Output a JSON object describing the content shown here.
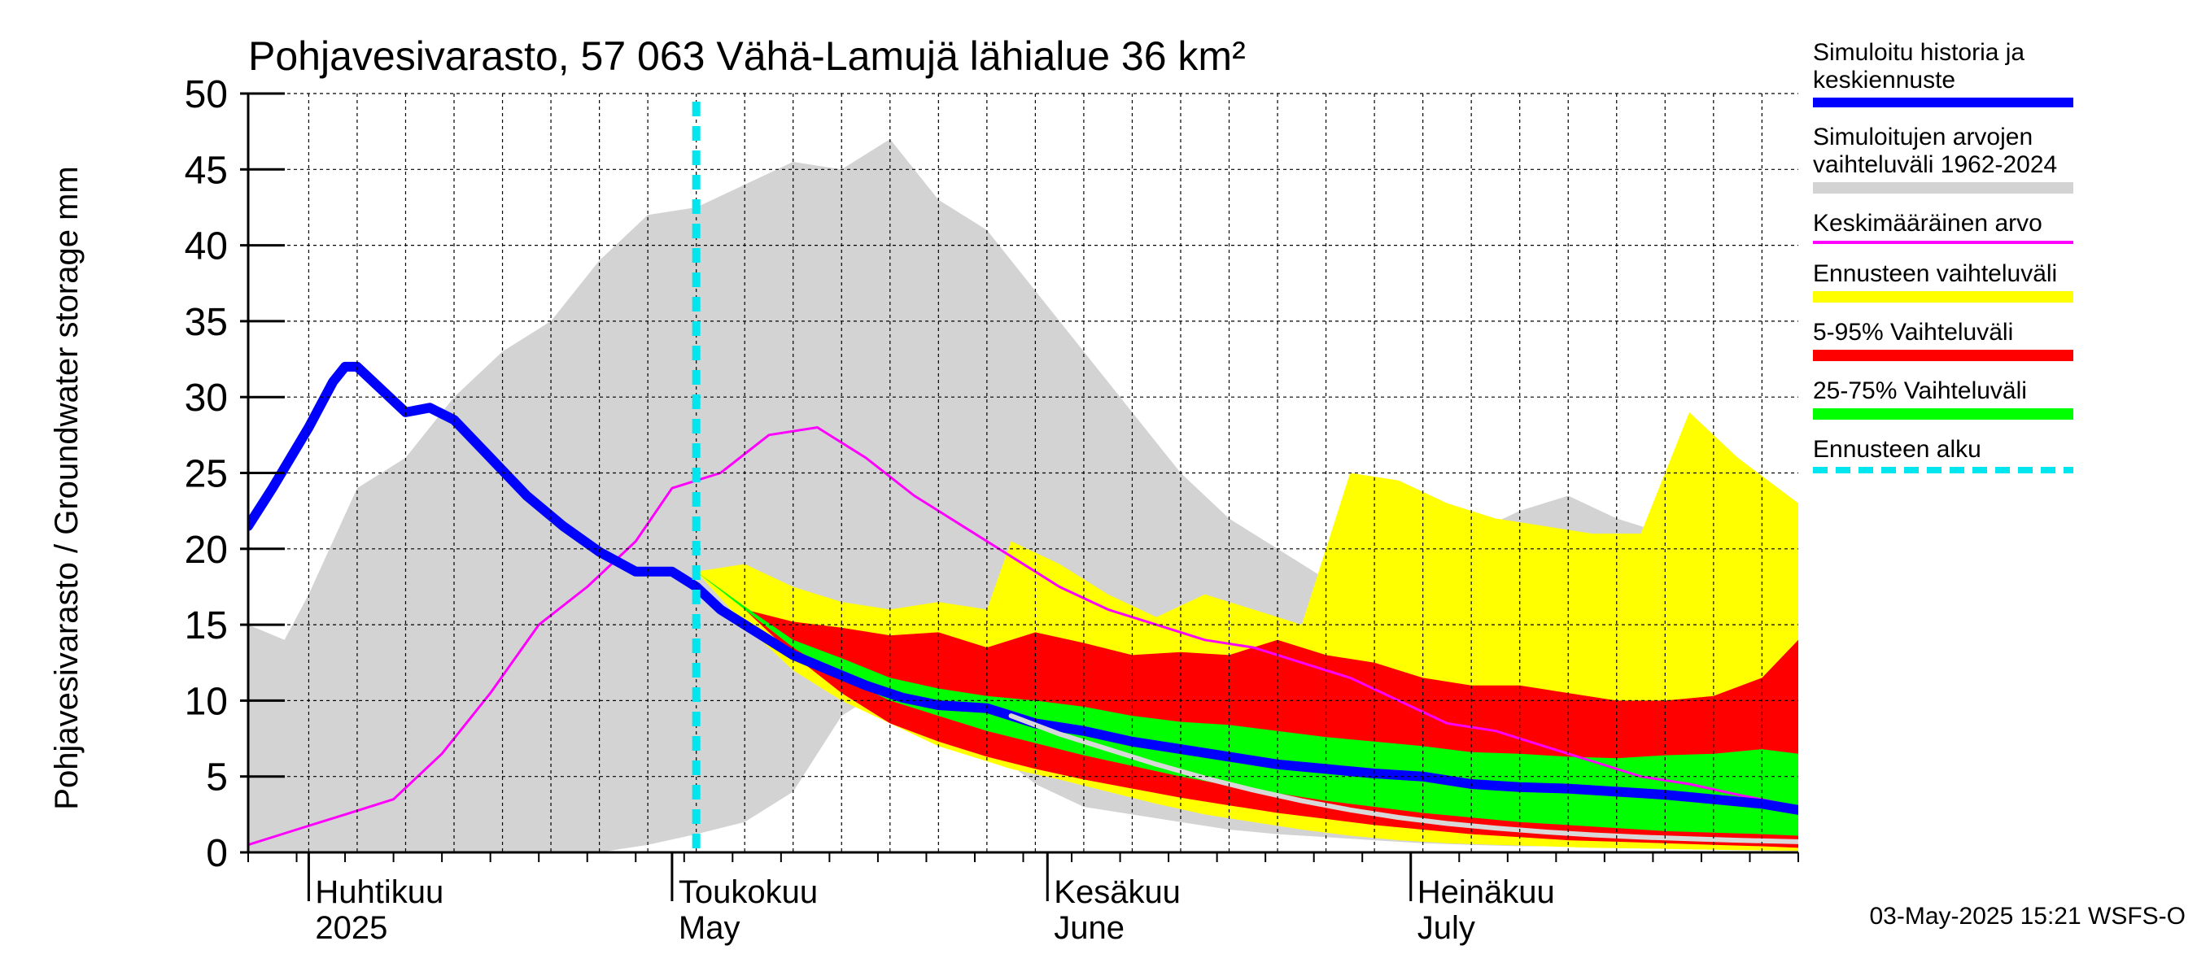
{
  "chart_data": {
    "type": "area",
    "title": "Pohjavesivarasto, 57 063 Vähä-Lamujä lähialue 36 km²",
    "ylabel": "Pohjavesivarasto / Groundwater storage   mm",
    "ylim": [
      0,
      50
    ],
    "yticks": [
      0,
      5,
      10,
      15,
      20,
      25,
      30,
      35,
      40,
      45,
      50
    ],
    "xlim": [
      "2025-03-27",
      "2025-08-02"
    ],
    "month_labels": [
      {
        "date": "2025-04-01",
        "fi": "Huhtikuu",
        "en": "2025"
      },
      {
        "date": "2025-05-01",
        "fi": "Toukokuu",
        "en": "May"
      },
      {
        "date": "2025-06-01",
        "fi": "Kesäkuu",
        "en": "June"
      },
      {
        "date": "2025-07-01",
        "fi": "Heinäkuu",
        "en": "July"
      }
    ],
    "forecast_start": "2025-05-03",
    "series": [
      {
        "name": "Simuloitujen arvojen vaihteluväli 1962-2024",
        "kind": "band",
        "color": "#d3d3d3",
        "x": [
          "2025-03-27",
          "2025-03-30",
          "2025-04-01",
          "2025-04-05",
          "2025-04-09",
          "2025-04-13",
          "2025-04-17",
          "2025-04-21",
          "2025-04-25",
          "2025-04-29",
          "2025-05-03",
          "2025-05-07",
          "2025-05-11",
          "2025-05-15",
          "2025-05-19",
          "2025-05-23",
          "2025-05-27",
          "2025-05-31",
          "2025-06-04",
          "2025-06-08",
          "2025-06-12",
          "2025-06-16",
          "2025-06-20",
          "2025-06-24",
          "2025-06-28",
          "2025-07-02",
          "2025-07-06",
          "2025-07-10",
          "2025-07-14",
          "2025-07-18",
          "2025-07-22",
          "2025-07-26",
          "2025-07-30",
          "2025-08-02"
        ],
        "low": [
          0,
          0,
          0,
          0,
          0,
          0,
          0,
          0,
          0,
          0.5,
          1.2,
          2,
          4,
          9,
          11,
          9,
          7,
          4.5,
          3,
          2.5,
          2,
          1.5,
          1.2,
          1,
          0.8,
          0.6,
          0.5,
          0.4,
          0.4,
          0.3,
          0.3,
          0.3,
          0.2,
          0.2
        ],
        "high": [
          15,
          14,
          17,
          24,
          26,
          30,
          33,
          35,
          39,
          42,
          42.5,
          44,
          45.5,
          45,
          47,
          43,
          41,
          37,
          33,
          29,
          25,
          22,
          20,
          18,
          17.5,
          19,
          21,
          22.5,
          23.5,
          22,
          21,
          20,
          19.5,
          19.5
        ]
      },
      {
        "name": "Ennusteen vaihteluväli",
        "kind": "band",
        "color": "#ffff00",
        "x": [
          "2025-05-03",
          "2025-05-07",
          "2025-05-11",
          "2025-05-15",
          "2025-05-19",
          "2025-05-23",
          "2025-05-27",
          "2025-05-29",
          "2025-06-02",
          "2025-06-06",
          "2025-06-10",
          "2025-06-14",
          "2025-06-18",
          "2025-06-22",
          "2025-06-26",
          "2025-06-30",
          "2025-07-04",
          "2025-07-08",
          "2025-07-12",
          "2025-07-16",
          "2025-07-20",
          "2025-07-24",
          "2025-07-28",
          "2025-08-02"
        ],
        "low": [
          18.5,
          15,
          12,
          10,
          8.5,
          7,
          6,
          5.5,
          4.8,
          4,
          3.2,
          2.5,
          2,
          1.5,
          1.1,
          0.8,
          0.6,
          0.5,
          0.4,
          0.3,
          0.25,
          0.2,
          0.15,
          0.1
        ],
        "high": [
          18.5,
          19,
          17.5,
          16.5,
          16,
          16.5,
          16,
          20.5,
          19,
          17,
          15.5,
          17,
          16,
          15,
          25,
          24.5,
          23,
          22,
          21.5,
          21,
          21,
          29,
          26,
          23
        ]
      },
      {
        "name": "5-95% Vaihteluväli",
        "kind": "band",
        "color": "#ff0000",
        "x": [
          "2025-05-03",
          "2025-05-07",
          "2025-05-11",
          "2025-05-15",
          "2025-05-19",
          "2025-05-23",
          "2025-05-27",
          "2025-05-31",
          "2025-06-04",
          "2025-06-08",
          "2025-06-12",
          "2025-06-16",
          "2025-06-20",
          "2025-06-24",
          "2025-06-28",
          "2025-07-02",
          "2025-07-06",
          "2025-07-10",
          "2025-07-14",
          "2025-07-18",
          "2025-07-22",
          "2025-07-26",
          "2025-07-30",
          "2025-08-02"
        ],
        "low": [
          18.5,
          16,
          13,
          10.5,
          8.5,
          7.3,
          6.3,
          5.5,
          4.8,
          4.2,
          3.6,
          3.1,
          2.6,
          2.2,
          1.8,
          1.5,
          1.2,
          1,
          0.8,
          0.7,
          0.6,
          0.5,
          0.4,
          0.3
        ],
        "high": [
          18.5,
          16,
          15.2,
          14.8,
          14.3,
          14.5,
          13.5,
          14.5,
          13.8,
          13,
          13.2,
          13,
          14,
          13,
          12.5,
          11.5,
          11,
          11,
          10.5,
          10,
          10,
          10.3,
          11.5,
          14
        ]
      },
      {
        "name": "25-75% Vaihteluväli",
        "kind": "band",
        "color": "#00ff00",
        "x": [
          "2025-05-03",
          "2025-05-07",
          "2025-05-11",
          "2025-05-15",
          "2025-05-19",
          "2025-05-23",
          "2025-05-27",
          "2025-05-31",
          "2025-06-04",
          "2025-06-08",
          "2025-06-12",
          "2025-06-16",
          "2025-06-20",
          "2025-06-24",
          "2025-06-28",
          "2025-07-02",
          "2025-07-06",
          "2025-07-10",
          "2025-07-14",
          "2025-07-18",
          "2025-07-22",
          "2025-07-26",
          "2025-07-30",
          "2025-08-02"
        ],
        "low": [
          18.5,
          16,
          13.5,
          11.5,
          10,
          9,
          8,
          7.2,
          6.4,
          5.7,
          5,
          4.4,
          3.9,
          3.4,
          3,
          2.6,
          2.3,
          2,
          1.8,
          1.6,
          1.4,
          1.3,
          1.2,
          1.1
        ],
        "high": [
          18.5,
          16.2,
          14,
          12.8,
          11.5,
          10.8,
          10.3,
          10,
          9.6,
          9,
          8.6,
          8.4,
          8,
          7.6,
          7.3,
          7,
          6.6,
          6.5,
          6.3,
          6.2,
          6.4,
          6.5,
          6.8,
          6.5
        ]
      },
      {
        "name": "Keskimääräinen arvo",
        "kind": "line",
        "color": "#ff00ff",
        "x": [
          "2025-03-27",
          "2025-03-31",
          "2025-04-04",
          "2025-04-08",
          "2025-04-12",
          "2025-04-16",
          "2025-04-20",
          "2025-04-24",
          "2025-04-28",
          "2025-05-01",
          "2025-05-05",
          "2025-05-09",
          "2025-05-13",
          "2025-05-17",
          "2025-05-21",
          "2025-05-25",
          "2025-05-29",
          "2025-06-02",
          "2025-06-06",
          "2025-06-10",
          "2025-06-14",
          "2025-06-18",
          "2025-06-22",
          "2025-06-26",
          "2025-06-30",
          "2025-07-04",
          "2025-07-08",
          "2025-07-12",
          "2025-07-16",
          "2025-07-20",
          "2025-07-24",
          "2025-07-28",
          "2025-08-02"
        ],
        "y": [
          0.5,
          1.5,
          2.5,
          3.5,
          6.5,
          10.5,
          15,
          17.5,
          20.5,
          24,
          25,
          27.5,
          28,
          26,
          23.5,
          21.5,
          19.5,
          17.5,
          16,
          15,
          14,
          13.5,
          12.5,
          11.5,
          10,
          8.5,
          8,
          7,
          6,
          5,
          4.5,
          3.8,
          3
        ]
      },
      {
        "name": "Simuloitu historia ja keskiennuste",
        "kind": "line",
        "color": "#0000ff",
        "x": [
          "2025-03-27",
          "2025-03-29",
          "2025-04-01",
          "2025-04-03",
          "2025-04-04",
          "2025-04-05",
          "2025-04-07",
          "2025-04-09",
          "2025-04-11",
          "2025-04-13",
          "2025-04-16",
          "2025-04-19",
          "2025-04-22",
          "2025-04-25",
          "2025-04-28",
          "2025-05-01",
          "2025-05-03",
          "2025-05-05",
          "2025-05-08",
          "2025-05-11",
          "2025-05-14",
          "2025-05-17",
          "2025-05-20",
          "2025-05-23",
          "2025-05-27",
          "2025-05-31",
          "2025-06-04",
          "2025-06-08",
          "2025-06-12",
          "2025-06-16",
          "2025-06-20",
          "2025-06-24",
          "2025-06-28",
          "2025-07-02",
          "2025-07-06",
          "2025-07-10",
          "2025-07-14",
          "2025-07-18",
          "2025-07-22",
          "2025-07-26",
          "2025-07-30",
          "2025-08-02"
        ],
        "y": [
          21.5,
          24,
          28,
          31,
          32,
          32,
          30.5,
          29,
          29.3,
          28.5,
          26,
          23.5,
          21.5,
          19.8,
          18.5,
          18.5,
          17.5,
          16,
          14.5,
          13,
          12,
          11,
          10.2,
          9.7,
          9.5,
          8.5,
          8,
          7.3,
          6.8,
          6.3,
          5.8,
          5.5,
          5.2,
          5,
          4.5,
          4.3,
          4.2,
          4,
          3.8,
          3.5,
          3.2,
          2.8
        ]
      },
      {
        "name": "",
        "kind": "line",
        "color": "#d8d8d8",
        "x": [
          "2025-05-29",
          "2025-06-02",
          "2025-06-06",
          "2025-06-10",
          "2025-06-14",
          "2025-06-18",
          "2025-06-22",
          "2025-06-26",
          "2025-06-30",
          "2025-07-04",
          "2025-07-08",
          "2025-07-12",
          "2025-07-16",
          "2025-07-20",
          "2025-07-24",
          "2025-07-28",
          "2025-08-02"
        ],
        "y": [
          9,
          7.8,
          6.8,
          5.8,
          4.9,
          4.1,
          3.4,
          2.8,
          2.3,
          1.9,
          1.6,
          1.35,
          1.15,
          1,
          0.9,
          0.8,
          0.7
        ]
      }
    ]
  },
  "legend": [
    {
      "label": "Simuloitu historia ja\nkeskiennuste",
      "color": "#0000ff",
      "style": "thick"
    },
    {
      "label": "Simuloitujen arvojen\nvaihteluväli 1962-2024",
      "color": "#d3d3d3",
      "style": "medium"
    },
    {
      "label": "Keskimääräinen arvo",
      "color": "#ff00ff",
      "style": "thin"
    },
    {
      "label": "Ennusteen vaihteluväli",
      "color": "#ffff00",
      "style": "medium"
    },
    {
      "label": "5-95% Vaihteluväli",
      "color": "#ff0000",
      "style": "medium"
    },
    {
      "label": "25-75% Vaihteluväli",
      "color": "#00ff00",
      "style": "medium"
    },
    {
      "label": "Ennusteen alku",
      "color": "#00e5ee",
      "style": "dashed"
    }
  ],
  "footer": "03-May-2025 15:21 WSFS-O"
}
